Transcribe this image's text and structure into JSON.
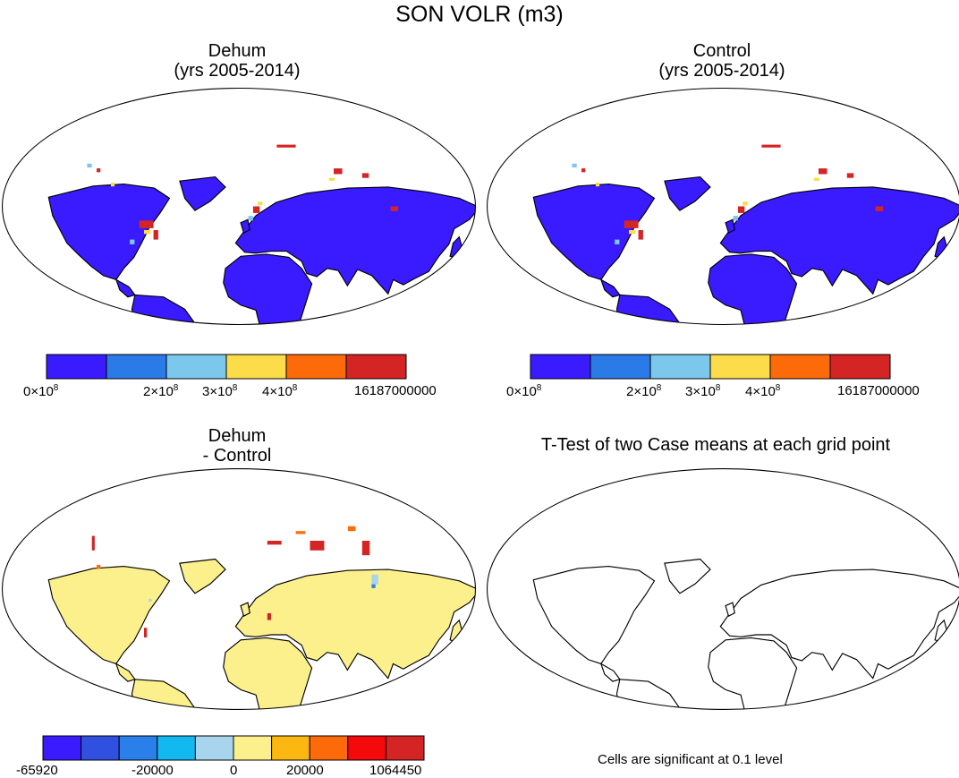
{
  "figure": {
    "title": "SON VOLR (m3)"
  },
  "panels": [
    {
      "id": "dehum",
      "title_line1": "Dehum",
      "title_line2": "(yrs 2005-2014)"
    },
    {
      "id": "control",
      "title_line1": "Control",
      "title_line2": "(yrs 2005-2014)"
    },
    {
      "id": "diff",
      "title_line1": "Dehum",
      "title_line2": "- Control"
    },
    {
      "id": "ttest",
      "title_line1": "T-Test of two Case means at each grid point",
      "title_line2": ""
    }
  ],
  "colorbar_abs": {
    "colors": [
      "#3a1aff",
      "#2a7ae8",
      "#7cc8ec",
      "#fcdc48",
      "#fc6a0a",
      "#d42424"
    ],
    "labels": [
      {
        "mant": "0×10",
        "exp": "8"
      },
      {
        "mant": "2×10",
        "exp": "8"
      },
      {
        "mant": "3×10",
        "exp": "8"
      },
      {
        "mant": "4×10",
        "exp": "8"
      },
      {
        "mant": "16187000000",
        "exp": ""
      }
    ]
  },
  "colorbar_diff": {
    "colors": [
      "#3a1aff",
      "#3050e0",
      "#2a80e8",
      "#12b8f0",
      "#a8d4ee",
      "#fcf08c",
      "#fcb810",
      "#fc6a0a",
      "#f40a0a",
      "#d42424"
    ],
    "labels": [
      "-65920",
      "-20000",
      "0",
      "20000",
      "1064450"
    ]
  },
  "ttest_note": "Cells are significant at 0.1 level"
}
